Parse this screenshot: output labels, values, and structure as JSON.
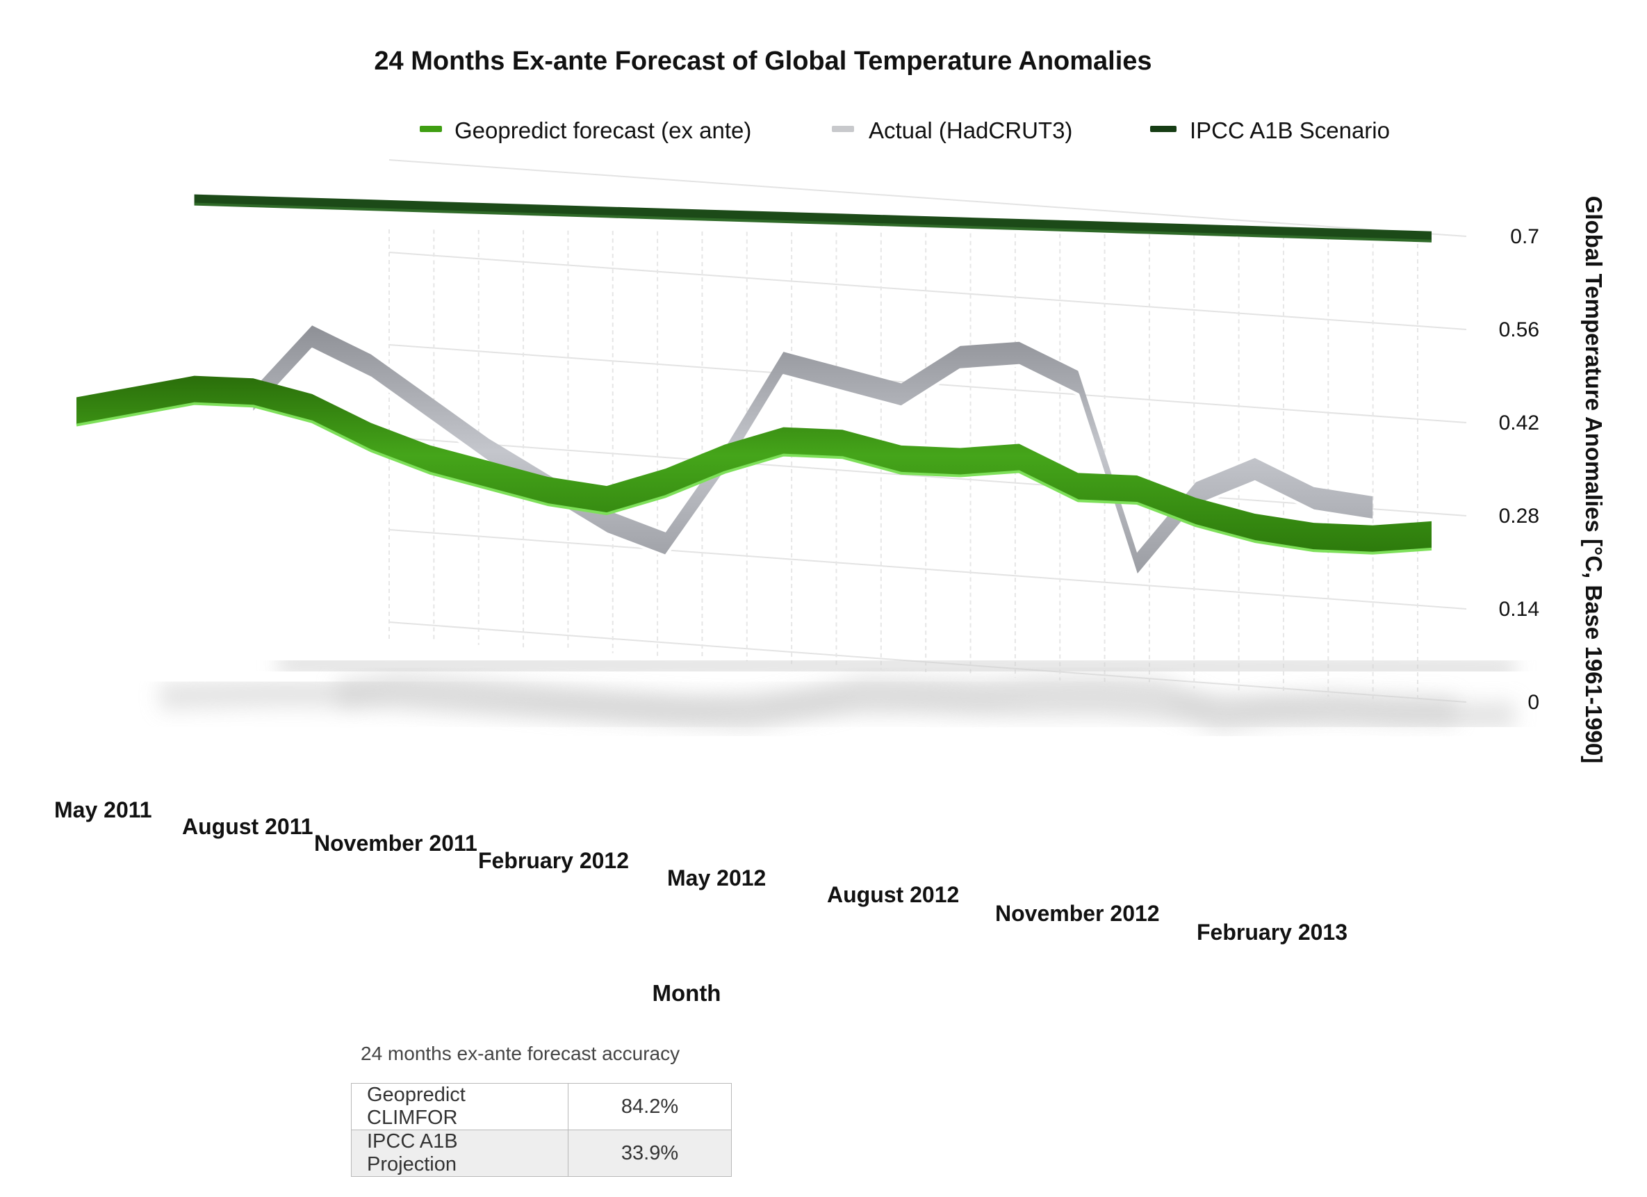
{
  "chart_data": {
    "type": "line",
    "title": "24 Months Ex-ante Forecast of Global Temperature Anomalies",
    "xlabel": "Month",
    "ylabel": "Global Temperature Anomalies [°C, Base 1961-1990]",
    "ylim": [
      0,
      0.7
    ],
    "yticks": [
      "0",
      "0.14",
      "0.28",
      "0.42",
      "0.56",
      "0.7"
    ],
    "x": [
      "May 2011",
      "Jun 2011",
      "Jul 2011",
      "Aug 2011",
      "Sep 2011",
      "Oct 2011",
      "Nov 2011",
      "Dec 2011",
      "Jan 2012",
      "Feb 2012",
      "Mar 2012",
      "Apr 2012",
      "May 2012",
      "Jun 2012",
      "Jul 2012",
      "Aug 2012",
      "Sep 2012",
      "Oct 2012",
      "Nov 2012",
      "Dec 2012",
      "Jan 2013",
      "Feb 2013",
      "Mar 2013",
      "Apr 2013"
    ],
    "xtick_labels": [
      "May 2011",
      "August 2011",
      "November 2011",
      "February 2012",
      "May 2012",
      "August 2012",
      "November 2012",
      "February 2013"
    ],
    "series": [
      {
        "name": "Geopredict forecast (ex ante)",
        "color": "#3f9e12",
        "values": [
          0.33,
          0.35,
          0.37,
          0.37,
          0.35,
          0.31,
          0.28,
          0.26,
          0.24,
          0.23,
          0.26,
          0.3,
          0.33,
          0.33,
          0.31,
          0.31,
          0.32,
          0.28,
          0.28,
          0.25,
          0.23,
          0.22,
          0.22,
          0.23
        ]
      },
      {
        "name": "Actual (HadCRUT3)",
        "color": "#b8bac0",
        "values": [
          null,
          null,
          null,
          0.36,
          0.46,
          0.42,
          0.36,
          0.3,
          0.25,
          0.2,
          0.17,
          0.3,
          0.45,
          0.43,
          0.41,
          0.47,
          0.48,
          0.44,
          0.17,
          0.28,
          0.32,
          0.28,
          0.27,
          null
        ]
      },
      {
        "name": "IPCC A1B Scenario",
        "color": "#163d14",
        "values": [
          null,
          null,
          0.672,
          0.673,
          0.674,
          0.675,
          0.676,
          0.677,
          0.678,
          0.679,
          0.68,
          0.681,
          0.682,
          0.683,
          0.684,
          0.685,
          0.686,
          0.687,
          0.688,
          0.689,
          0.69,
          0.691,
          0.692,
          0.693
        ]
      }
    ],
    "legend": "top-center",
    "grid": true
  },
  "accuracy": {
    "title": "24 months ex-ante forecast accuracy",
    "rows": [
      {
        "label": "Geopredict CLIMFOR",
        "value": "84.2%"
      },
      {
        "label": "IPCC A1B Projection",
        "value": "33.9%"
      }
    ]
  }
}
